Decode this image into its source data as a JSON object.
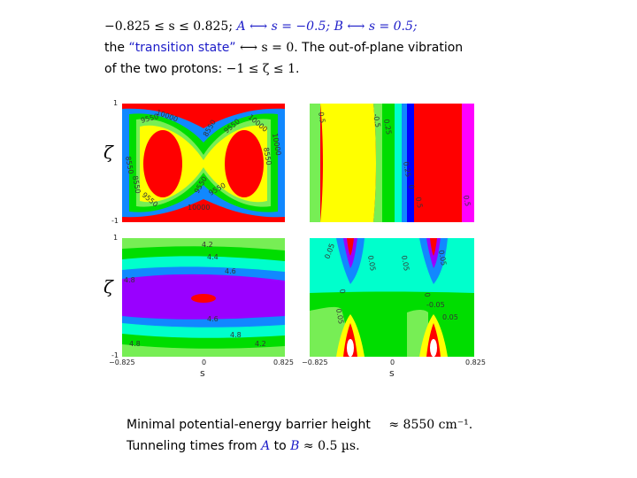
{
  "text": {
    "line1": {
      "range": "−0.825 ≤ s ≤ 0.825;",
      "a_map": "A ⟷ s = −0.5;",
      "b_map": "B ⟷ s = 0.5;"
    },
    "line2": {
      "prefix": "the ",
      "quoted": "“transition state”",
      "map": " ⟷ s = 0.",
      "suffix": " The out-of-plane vibration"
    },
    "line3": {
      "prefix": "of the two protons: ",
      "range": "−1 ≤ ζ ≤ 1",
      "suffix": "."
    },
    "bottom1": {
      "prefix": "Minimal potential-energy barrier height",
      "value": "≈ 8550 cm⁻¹",
      "suffix": "."
    },
    "bottom2": {
      "prefix": "Tunneling times from ",
      "a": "A",
      "to": " to ",
      "b": "B",
      "value": " ≈ 0.5 µs."
    }
  },
  "axes": {
    "zeta_label": "ζ",
    "s_label": "s",
    "s_ticks": [
      "−0.825",
      "0",
      "0.825"
    ],
    "zeta_ticks": [
      "1",
      "-1"
    ]
  },
  "colors": {
    "red": "#ff0000",
    "yellow": "#ffff00",
    "light_green": "#77ee55",
    "green": "#00dd00",
    "cyan": "#00ffcc",
    "blue": "#1188ff",
    "dark_blue": "#0000ff",
    "purple": "#9900ff",
    "magenta": "#ff00ff",
    "white": "#ffffff"
  },
  "chart_data": [
    {
      "type": "heatmap",
      "panel": "top-left",
      "contour_labels": [
        "10000",
        "9550",
        "8550",
        "8550",
        "9550",
        "10000",
        "8550",
        "9550",
        "9550",
        "10000",
        "8550",
        "10000",
        "9550"
      ]
    },
    {
      "type": "heatmap",
      "panel": "top-right",
      "contour_labels": [
        "0.5",
        "-0.5",
        "0.25",
        "0.25",
        "0",
        "0.5",
        "0.5"
      ]
    },
    {
      "type": "heatmap",
      "panel": "bottom-left",
      "contour_labels": [
        "4.2",
        "4.4",
        "4.6",
        "4.8",
        "4.6",
        "4.8",
        "4.8",
        "4.2"
      ]
    },
    {
      "type": "heatmap",
      "panel": "bottom-right",
      "contour_labels": [
        "0.05",
        "0.05",
        "0.05",
        "0.05",
        "0",
        "0",
        "-0.05",
        "0.05",
        "0.05"
      ]
    }
  ]
}
